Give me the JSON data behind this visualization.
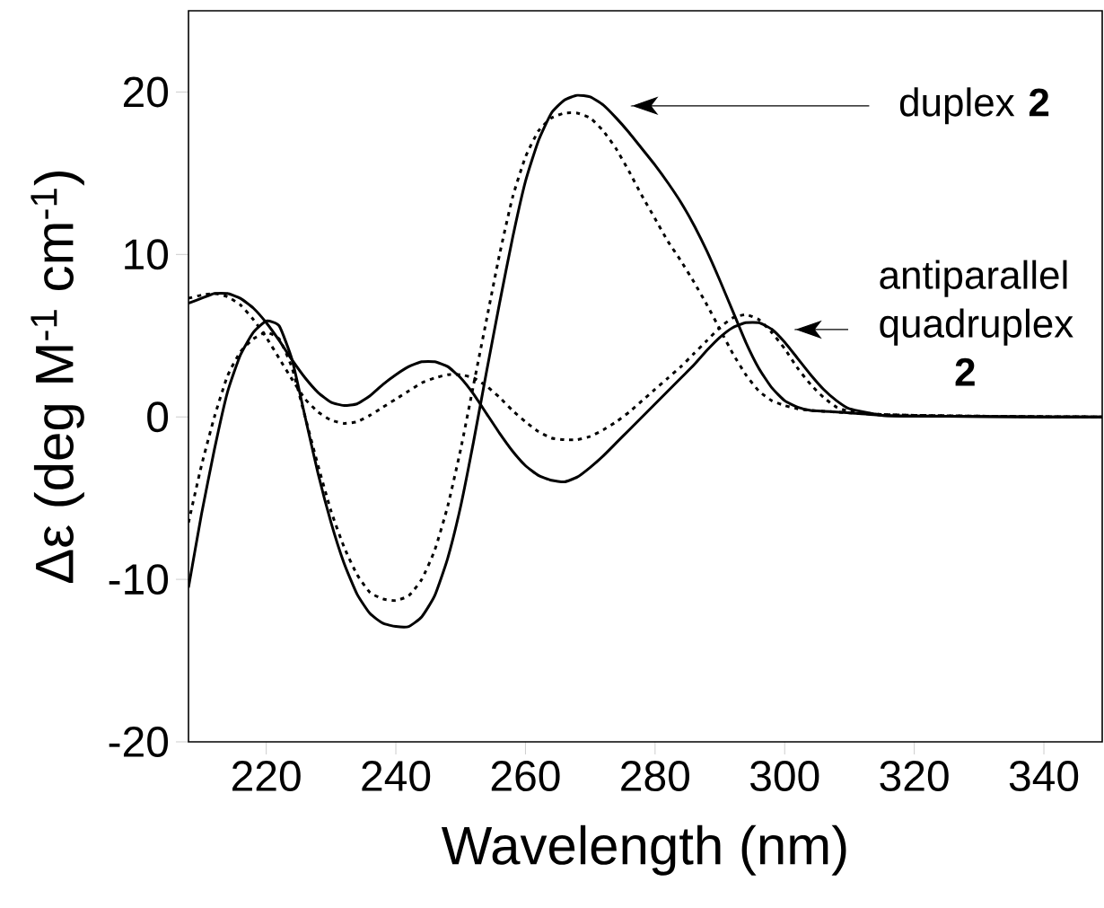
{
  "chart_data": {
    "type": "line",
    "xlabel": "Wavelength (nm)",
    "ylabel": "Δε (deg M$^{-1}$ cm$^{-1}$)",
    "x": [
      208,
      210,
      212,
      214,
      216,
      218,
      220,
      222,
      224,
      226,
      228,
      230,
      232,
      234,
      236,
      238,
      240,
      242,
      244,
      246,
      248,
      250,
      252,
      254,
      256,
      258,
      260,
      262,
      264,
      266,
      268,
      270,
      272,
      274,
      276,
      278,
      280,
      282,
      284,
      286,
      288,
      290,
      292,
      294,
      296,
      298,
      300,
      302,
      304,
      306,
      308,
      310,
      315,
      320,
      330,
      340,
      349
    ],
    "series": [
      {
        "color": "#000000",
        "line_style": "solid",
        "values": [
          -10.5,
          -6,
          -2,
          1.5,
          3.8,
          5.2,
          5.9,
          5.6,
          3.5,
          0,
          -3.5,
          -6.5,
          -9,
          -10.9,
          -12.1,
          -12.7,
          -12.9,
          -12.9,
          -12.3,
          -11,
          -8.7,
          -5.5,
          -1.5,
          2.8,
          7,
          11,
          14.5,
          17,
          18.7,
          19.5,
          19.8,
          19.7,
          19.2,
          18.4,
          17.5,
          16.5,
          15.5,
          14.4,
          13.2,
          11.8,
          10.2,
          8.4,
          6.5,
          4.6,
          3,
          1.8,
          1.0,
          0.6,
          0.4,
          0.35,
          0.3,
          0.25,
          0.1,
          0.05,
          0.02,
          0,
          0
        ]
      },
      {
        "color": "#000000",
        "line_style": "dotted",
        "values": [
          -6.5,
          -3,
          0,
          2.5,
          4,
          4.8,
          5.2,
          4.8,
          3,
          0,
          -3,
          -5.8,
          -8,
          -9.7,
          -10.8,
          -11.2,
          -11.3,
          -11,
          -10,
          -8.2,
          -5.5,
          -2,
          2,
          6,
          10,
          13.5,
          16,
          17.6,
          18.4,
          18.7,
          18.7,
          18.4,
          17.6,
          16.5,
          15.1,
          13.6,
          12.2,
          10.8,
          9.6,
          8.3,
          6.9,
          5.4,
          3.9,
          2.6,
          1.6,
          1,
          0.7,
          0.5,
          0.4,
          0.35,
          0.3,
          0.25,
          0.15,
          0.1,
          0.05,
          0.02,
          0
        ]
      },
      {
        "color": "#000000",
        "line_style": "solid",
        "values": [
          7.0,
          7.3,
          7.6,
          7.6,
          7.3,
          6.7,
          5.8,
          4.7,
          3.5,
          2.4,
          1.5,
          0.9,
          0.7,
          0.8,
          1.3,
          2,
          2.6,
          3.1,
          3.4,
          3.4,
          3.1,
          2.4,
          1.4,
          0.2,
          -1,
          -2.1,
          -3,
          -3.6,
          -3.9,
          -4,
          -3.7,
          -3.1,
          -2.4,
          -1.6,
          -0.8,
          0,
          0.8,
          1.6,
          2.4,
          3.2,
          4.1,
          4.9,
          5.5,
          5.8,
          5.8,
          5.4,
          4.6,
          3.6,
          2.6,
          1.7,
          1,
          0.5,
          0.1,
          0.05,
          0.02,
          0,
          0
        ]
      },
      {
        "color": "#000000",
        "line_style": "dotted",
        "values": [
          7.3,
          7.5,
          7.6,
          7.4,
          6.9,
          6,
          4.9,
          3.6,
          2.3,
          1.1,
          0.3,
          -0.2,
          -0.4,
          -0.3,
          0.1,
          0.6,
          1.1,
          1.6,
          2.1,
          2.4,
          2.6,
          2.6,
          2.4,
          1.9,
          1.2,
          0.4,
          -0.3,
          -0.9,
          -1.3,
          -1.4,
          -1.4,
          -1.2,
          -0.8,
          -0.3,
          0.3,
          1,
          1.7,
          2.4,
          3.1,
          3.9,
          4.7,
          5.5,
          6.1,
          6.3,
          6.0,
          5.2,
          4.2,
          3.0,
          2,
          1.2,
          0.6,
          0.35,
          0.15,
          0.1,
          0.05,
          0.02,
          0
        ]
      }
    ],
    "xlim": [
      208,
      349
    ],
    "ylim": [
      -20,
      25
    ],
    "xticks": [
      220,
      240,
      260,
      280,
      300,
      320,
      340
    ],
    "yticks": [
      -20,
      -10,
      0,
      10,
      20
    ],
    "grid": false,
    "annotations": [
      "duplex **2**",
      "antiparallel quadruplex **2**"
    ]
  }
}
